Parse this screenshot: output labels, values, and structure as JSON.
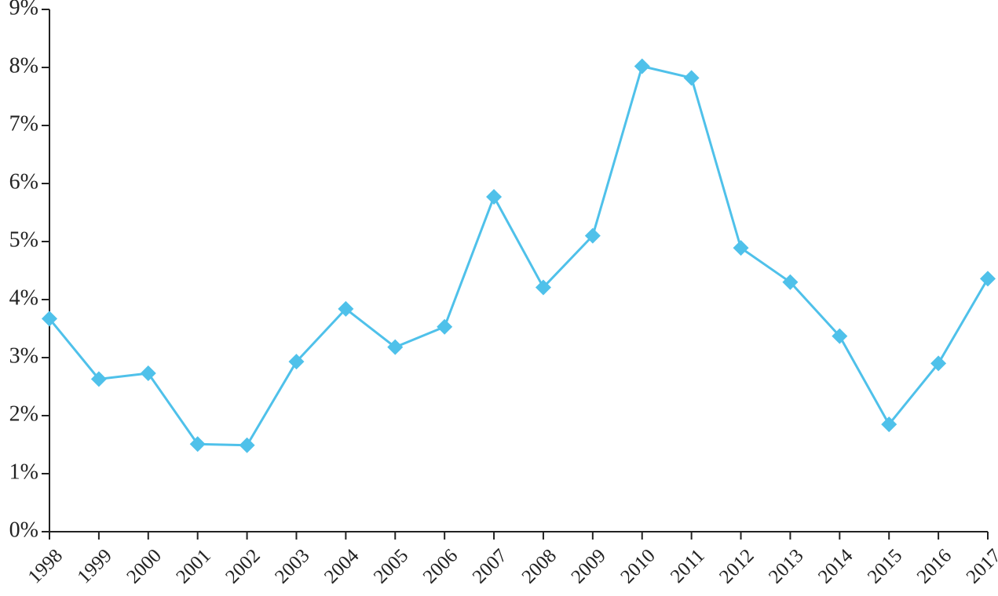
{
  "chart_data": {
    "type": "line",
    "title": "",
    "xlabel": "",
    "ylabel": "",
    "categories": [
      "1998",
      "1999",
      "2000",
      "2001",
      "2002",
      "2003",
      "2004",
      "2005",
      "2006",
      "2007",
      "2008",
      "2009",
      "2010",
      "2011",
      "2012",
      "2013",
      "2014",
      "2015",
      "2016",
      "2017"
    ],
    "series": [
      {
        "values": [
          3.67,
          2.63,
          2.73,
          1.51,
          1.49,
          2.93,
          3.84,
          3.18,
          3.53,
          5.77,
          4.21,
          5.1,
          8.02,
          7.82,
          4.89,
          4.3,
          3.37,
          1.85,
          2.9,
          4.36
        ],
        "color": "#4fc1ea",
        "marker": "diamond"
      }
    ],
    "ylim": [
      0,
      9
    ],
    "yticks": [
      {
        "value": 0,
        "label": "0%"
      },
      {
        "value": 1,
        "label": "1%"
      },
      {
        "value": 2,
        "label": "2%"
      },
      {
        "value": 3,
        "label": "3%"
      },
      {
        "value": 4,
        "label": "4%"
      },
      {
        "value": 5,
        "label": "5%"
      },
      {
        "value": 6,
        "label": "6%"
      },
      {
        "value": 7,
        "label": "7%"
      },
      {
        "value": 8,
        "label": "8%"
      },
      {
        "value": 9,
        "label": "9%"
      }
    ],
    "grid": false,
    "legend": "none",
    "axis_color": "#222222"
  }
}
